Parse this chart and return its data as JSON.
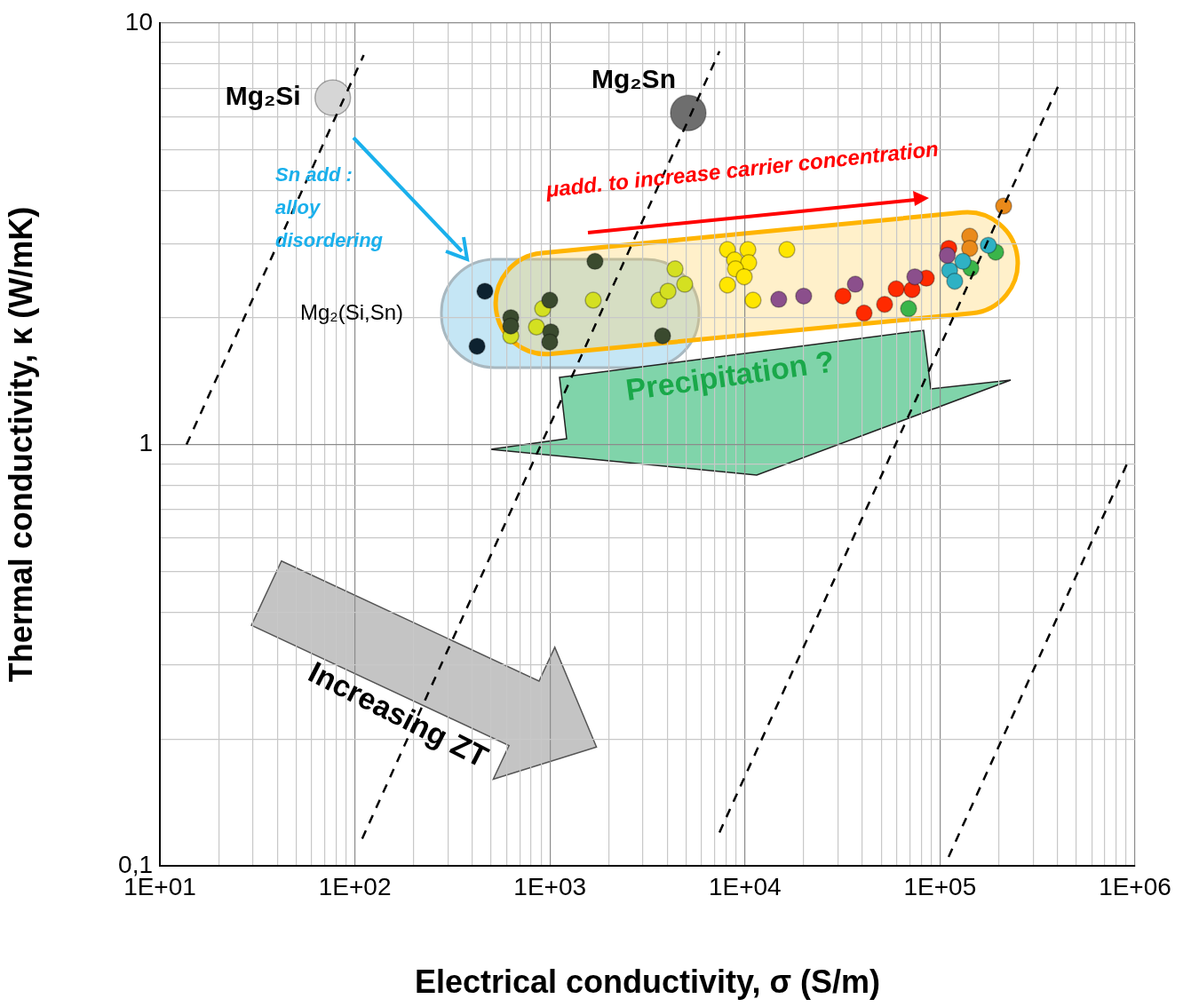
{
  "chart_data": {
    "type": "scatter",
    "xlabel": "Electrical conductivity, σ (S/m)",
    "ylabel": "Thermal conductivity, κ (W/mK)",
    "log": "xy",
    "grid": true,
    "legend": false,
    "marker": "circle",
    "xlim": [
      10,
      1000000
    ],
    "ylim": [
      0.1,
      10
    ],
    "xticks": [
      {
        "value": 10,
        "label": "1E+01"
      },
      {
        "value": 20,
        "label": null
      },
      {
        "value": 30,
        "label": null
      },
      {
        "value": 40,
        "label": null
      },
      {
        "value": 50,
        "label": null
      },
      {
        "value": 60,
        "label": null
      },
      {
        "value": 70,
        "label": null
      },
      {
        "value": 80,
        "label": null
      },
      {
        "value": 90,
        "label": null
      },
      {
        "value": 100,
        "label": "1E+02"
      },
      {
        "value": 200,
        "label": null
      },
      {
        "value": 300,
        "label": null
      },
      {
        "value": 400,
        "label": null
      },
      {
        "value": 500,
        "label": null
      },
      {
        "value": 600,
        "label": null
      },
      {
        "value": 700,
        "label": null
      },
      {
        "value": 800,
        "label": null
      },
      {
        "value": 900,
        "label": null
      },
      {
        "value": 1000,
        "label": "1E+03"
      },
      {
        "value": 2000,
        "label": null
      },
      {
        "value": 3000,
        "label": null
      },
      {
        "value": 4000,
        "label": null
      },
      {
        "value": 5000,
        "label": null
      },
      {
        "value": 6000,
        "label": null
      },
      {
        "value": 7000,
        "label": null
      },
      {
        "value": 8000,
        "label": null
      },
      {
        "value": 9000,
        "label": null
      },
      {
        "value": 10000,
        "label": "1E+04"
      },
      {
        "value": 20000,
        "label": null
      },
      {
        "value": 30000,
        "label": null
      },
      {
        "value": 40000,
        "label": null
      },
      {
        "value": 50000,
        "label": null
      },
      {
        "value": 60000,
        "label": null
      },
      {
        "value": 70000,
        "label": null
      },
      {
        "value": 80000,
        "label": null
      },
      {
        "value": 90000,
        "label": null
      },
      {
        "value": 100000,
        "label": "1E+05"
      },
      {
        "value": 200000,
        "label": null
      },
      {
        "value": 300000,
        "label": null
      },
      {
        "value": 400000,
        "label": null
      },
      {
        "value": 500000,
        "label": null
      },
      {
        "value": 600000,
        "label": null
      },
      {
        "value": 700000,
        "label": null
      },
      {
        "value": 800000,
        "label": null
      },
      {
        "value": 900000,
        "label": null
      },
      {
        "value": 1000000,
        "label": "1E+06"
      }
    ],
    "yticks": [
      {
        "value": 0.1,
        "label": "0,1"
      },
      {
        "value": 0.2,
        "label": null
      },
      {
        "value": 0.3,
        "label": null
      },
      {
        "value": 0.4,
        "label": null
      },
      {
        "value": 0.5,
        "label": null
      },
      {
        "value": 0.6,
        "label": null
      },
      {
        "value": 0.7,
        "label": null
      },
      {
        "value": 0.8,
        "label": null
      },
      {
        "value": 0.9,
        "label": null
      },
      {
        "value": 1,
        "label": "1"
      },
      {
        "value": 2,
        "label": null
      },
      {
        "value": 3,
        "label": null
      },
      {
        "value": 4,
        "label": null
      },
      {
        "value": 5,
        "label": null
      },
      {
        "value": 6,
        "label": null
      },
      {
        "value": 7,
        "label": null
      },
      {
        "value": 8,
        "label": null
      },
      {
        "value": 9,
        "label": null
      },
      {
        "value": 10,
        "label": "10"
      }
    ],
    "series": [
      {
        "type": "line",
        "color": "#000000",
        "line_style": "dashed",
        "marker": "none",
        "x": [
          13.7,
          111
        ],
        "values": [
          1.0,
          8.4
        ]
      },
      {
        "type": "line",
        "color": "#000000",
        "line_style": "dashed",
        "marker": "none",
        "x": [
          109,
          7400
        ],
        "values": [
          0.116,
          8.57
        ]
      },
      {
        "type": "line",
        "color": "#000000",
        "line_style": "dashed",
        "marker": "none",
        "x": [
          7400,
          410000
        ],
        "values": [
          0.12,
          7.2
        ]
      },
      {
        "type": "line",
        "color": "#000000",
        "line_style": "dashed",
        "marker": "none",
        "x": [
          110700,
          920000
        ],
        "values": [
          0.105,
          0.91
        ]
      },
      {
        "name": "Mg₂Si",
        "color": "#d6d6d6",
        "x": [
          77
        ],
        "values": [
          6.65
        ]
      },
      {
        "name": "Mg₂Sn",
        "color": "#6e6e6e",
        "x": [
          5120
        ],
        "values": [
          6.12
        ]
      },
      {
        "color": "#0d2230",
        "x": [
          464,
          423
        ],
        "values": [
          2.31,
          1.71
        ]
      },
      {
        "color": "#3a4a2e",
        "x": [
          1702,
          998,
          630,
          630,
          1010,
          998,
          3780
        ],
        "values": [
          2.72,
          2.2,
          2.0,
          1.91,
          1.85,
          1.75,
          1.81
        ]
      },
      {
        "color": "#d4e021",
        "x": [
          918,
          853,
          630,
          1667,
          3620,
          4030,
          4380,
          4910
        ],
        "values": [
          2.1,
          1.9,
          1.81,
          2.2,
          2.2,
          2.31,
          2.61,
          2.4
        ]
      },
      {
        "color": "#ffe600",
        "x": [
          8130,
          10350,
          8850,
          10450,
          8940,
          9910,
          8130,
          11000,
          16400
        ],
        "values": [
          2.9,
          2.9,
          2.74,
          2.7,
          2.61,
          2.5,
          2.39,
          2.2,
          2.9
        ]
      },
      {
        "color": "#8b4f8c",
        "x": [
          14900,
          20000,
          36800,
          74300,
          109000
        ],
        "values": [
          2.21,
          2.25,
          2.4,
          2.5,
          2.81
        ]
      },
      {
        "color": "#ff2a00",
        "x": [
          31800,
          40800,
          52000,
          59600,
          71900,
          85100,
          111000
        ],
        "values": [
          2.25,
          2.05,
          2.15,
          2.34,
          2.33,
          2.48,
          2.92
        ]
      },
      {
        "color": "#2fb1c4",
        "x": [
          112000,
          119000,
          131000,
          177000
        ],
        "values": [
          2.59,
          2.44,
          2.72,
          2.97
        ]
      },
      {
        "color": "#3ab54a",
        "x": [
          69000,
          144000,
          193000
        ],
        "values": [
          2.1,
          2.62,
          2.86
        ]
      },
      {
        "color": "#ea8a1a",
        "x": [
          142000,
          142000,
          212000
        ],
        "values": [
          3.12,
          2.92,
          3.68
        ]
      }
    ],
    "annotations": [
      "Mg₂(Si,Sn)",
      "Sn add : alloy disordering",
      "μadd. to increase carrier concentration",
      "Precipitation ?",
      "Increasing ZT"
    ]
  }
}
